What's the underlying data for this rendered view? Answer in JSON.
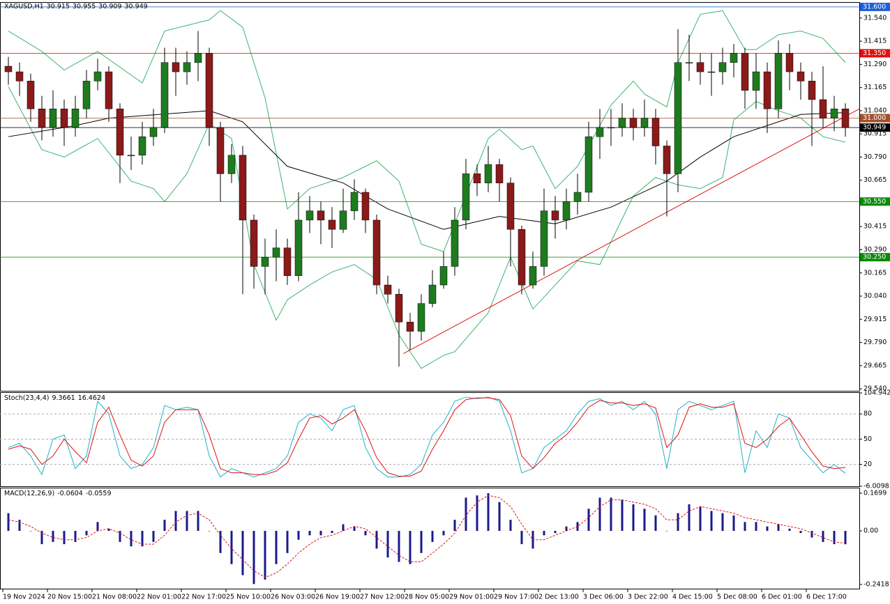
{
  "chart_data": [
    {
      "type": "candlestick",
      "title": "XAGUSD,H1",
      "header_values": [
        30.915,
        30.955,
        30.909,
        30.949
      ],
      "categories": [
        "19 Nov 2024",
        null,
        null,
        null,
        "20 Nov 15:00",
        null,
        null,
        null,
        "21 Nov 08:00",
        null,
        null,
        null,
        "22 Nov 01:00",
        null,
        null,
        null,
        "22 Nov 17:00",
        null,
        null,
        null,
        "25 Nov 10:00",
        null,
        null,
        null,
        "26 Nov 03:00",
        null,
        null,
        null,
        "26 Nov 19:00",
        null,
        null,
        null,
        "27 Nov 12:00",
        null,
        null,
        null,
        "28 Nov 05:00",
        null,
        null,
        null,
        "29 Nov 01:00",
        null,
        null,
        null,
        "29 Nov 17:00",
        null,
        null,
        null,
        "2 Dec 13:00",
        null,
        null,
        null,
        "3 Dec 06:00",
        null,
        null,
        null,
        "3 Dec 22:00",
        null,
        null,
        null,
        "4 Dec 15:00",
        null,
        null,
        null,
        "5 Dec 08:00",
        null,
        null,
        null,
        "6 Dec 01:00",
        null,
        null,
        null,
        "6 Dec 17:00",
        null,
        null,
        null
      ],
      "open": [
        31.28,
        31.25,
        31.2,
        31.05,
        30.95,
        31.05,
        30.95,
        31.05,
        31.2,
        31.25,
        31.05,
        30.8,
        30.8,
        30.9,
        30.95,
        31.3,
        31.25,
        31.3,
        31.35,
        30.95,
        30.7,
        30.8,
        30.45,
        30.2,
        30.25,
        30.3,
        30.15,
        30.45,
        30.5,
        30.45,
        30.4,
        30.5,
        30.6,
        30.45,
        30.1,
        30.05,
        29.9,
        29.85,
        30.0,
        30.1,
        30.2,
        30.45,
        30.7,
        30.65,
        30.75,
        30.65,
        30.4,
        30.1,
        30.2,
        30.5,
        30.45,
        30.55,
        30.6,
        30.9,
        30.95,
        30.95,
        31.0,
        30.95,
        31.0,
        30.85,
        30.7,
        31.3,
        31.3,
        31.25,
        31.25,
        31.3,
        31.35,
        31.15,
        31.25,
        31.05,
        31.35,
        31.25,
        31.2,
        31.1,
        31.0,
        31.05
      ],
      "high": [
        31.33,
        31.3,
        31.24,
        31.12,
        31.15,
        31.1,
        31.12,
        31.26,
        31.32,
        31.28,
        31.08,
        30.9,
        30.98,
        31.05,
        31.38,
        31.38,
        31.36,
        31.47,
        31.38,
        30.98,
        30.86,
        30.85,
        30.48,
        30.35,
        30.4,
        30.35,
        30.6,
        30.58,
        30.55,
        30.52,
        30.62,
        30.67,
        30.62,
        30.48,
        30.15,
        30.08,
        29.95,
        30.05,
        30.18,
        30.28,
        30.52,
        30.78,
        30.75,
        30.85,
        30.78,
        30.68,
        30.42,
        30.28,
        30.62,
        30.58,
        30.62,
        30.7,
        30.98,
        31.05,
        31.05,
        31.08,
        31.05,
        31.1,
        31.05,
        30.88,
        31.48,
        31.45,
        31.35,
        31.35,
        31.38,
        31.4,
        31.38,
        31.35,
        31.3,
        31.42,
        31.4,
        31.3,
        31.25,
        31.28,
        31.12,
        31.08
      ],
      "low": [
        31.18,
        31.12,
        30.98,
        30.88,
        30.9,
        30.85,
        30.9,
        31.0,
        31.15,
        30.98,
        30.65,
        30.72,
        30.75,
        30.85,
        30.92,
        31.12,
        31.18,
        31.2,
        30.85,
        30.55,
        30.65,
        30.05,
        30.08,
        30.05,
        30.12,
        30.1,
        30.12,
        30.38,
        30.32,
        30.3,
        30.38,
        30.45,
        30.38,
        30.05,
        30.0,
        29.66,
        29.75,
        29.8,
        29.98,
        30.08,
        30.15,
        30.4,
        30.58,
        30.6,
        30.55,
        30.2,
        30.05,
        30.08,
        30.15,
        30.35,
        30.4,
        30.48,
        30.55,
        30.78,
        30.85,
        30.9,
        30.88,
        30.9,
        30.75,
        30.47,
        30.6,
        31.2,
        31.18,
        31.12,
        31.18,
        31.22,
        31.05,
        31.05,
        30.92,
        31.0,
        31.15,
        31.1,
        30.85,
        30.95,
        30.93,
        30.9
      ],
      "close": [
        31.25,
        31.2,
        31.05,
        30.95,
        31.05,
        30.95,
        31.05,
        31.2,
        31.25,
        31.05,
        30.8,
        30.8,
        30.9,
        30.95,
        31.3,
        31.25,
        31.3,
        31.35,
        30.95,
        30.7,
        30.8,
        30.45,
        30.2,
        30.25,
        30.3,
        30.15,
        30.45,
        30.5,
        30.45,
        30.4,
        30.5,
        30.6,
        30.45,
        30.1,
        30.05,
        29.9,
        29.85,
        30.0,
        30.1,
        30.2,
        30.45,
        30.7,
        30.65,
        30.75,
        30.65,
        30.4,
        30.1,
        30.2,
        30.5,
        30.45,
        30.55,
        30.6,
        30.9,
        30.95,
        30.95,
        31.0,
        30.95,
        31.0,
        30.85,
        30.7,
        31.3,
        31.3,
        31.25,
        31.25,
        31.3,
        31.35,
        31.15,
        31.25,
        31.05,
        31.35,
        31.25,
        31.2,
        31.1,
        31.0,
        31.05,
        30.949
      ],
      "up_color": "#1e7b1e",
      "down_color": "#8b1a1a",
      "ylim": [
        29.529,
        31.626
      ],
      "yticks": [
        {
          "value": 29.54,
          "label": "29.540"
        },
        {
          "value": 29.665,
          "label": "29.665"
        },
        {
          "value": 29.79,
          "label": "29.790"
        },
        {
          "value": 29.915,
          "label": "29.915"
        },
        {
          "value": 30.04,
          "label": "30.040"
        },
        {
          "value": 30.165,
          "label": "30.165"
        },
        {
          "value": 30.29,
          "label": "30.290"
        },
        {
          "value": 30.415,
          "label": "30.415"
        },
        {
          "value": 30.54,
          "label": "30.540"
        },
        {
          "value": 30.665,
          "label": "30.665"
        },
        {
          "value": 30.79,
          "label": "30.790"
        },
        {
          "value": 30.915,
          "label": "30.915"
        },
        {
          "value": 31.04,
          "label": "31.040"
        },
        {
          "value": 31.165,
          "label": "31.165"
        },
        {
          "value": 31.29,
          "label": "31.290"
        },
        {
          "value": 31.415,
          "label": "31.415"
        },
        {
          "value": 31.54,
          "label": "31.540"
        }
      ],
      "lines": [
        {
          "color": "#3cb371",
          "x": [
            0,
            3,
            5,
            8,
            12,
            14,
            18,
            19,
            21,
            23,
            25,
            27,
            30,
            33,
            35,
            37,
            39,
            43,
            44,
            46,
            47,
            49,
            51,
            54,
            56,
            57,
            59,
            60,
            62,
            64,
            66,
            67,
            69,
            71,
            73,
            75
          ],
          "values": [
            31.47,
            31.36,
            31.26,
            31.36,
            31.19,
            31.47,
            31.53,
            31.58,
            31.49,
            31.11,
            30.51,
            30.62,
            30.68,
            30.77,
            30.66,
            30.32,
            30.28,
            30.89,
            30.94,
            30.83,
            30.85,
            30.62,
            30.74,
            31.07,
            31.2,
            31.13,
            31.06,
            31.3,
            31.56,
            31.58,
            31.37,
            31.37,
            31.45,
            31.47,
            31.43,
            31.3
          ]
        },
        {
          "color": "#3cb371",
          "x": [
            0,
            3,
            5,
            8,
            11,
            13,
            14,
            16,
            18,
            20,
            22,
            24,
            25,
            27,
            29,
            31,
            33,
            35,
            37,
            39,
            40,
            43,
            45,
            47,
            49,
            51,
            53,
            56,
            58,
            60,
            62,
            64,
            65,
            67,
            69,
            71,
            73,
            75
          ],
          "values": [
            31.17,
            30.83,
            30.79,
            30.89,
            30.66,
            30.62,
            30.55,
            30.7,
            30.97,
            30.89,
            30.21,
            29.91,
            30.02,
            30.1,
            30.17,
            30.21,
            30.13,
            29.83,
            29.65,
            29.72,
            29.74,
            29.95,
            30.25,
            29.97,
            30.1,
            30.23,
            30.21,
            30.58,
            30.68,
            30.64,
            30.62,
            30.68,
            30.99,
            31.09,
            31.04,
            31.0,
            30.9,
            30.87
          ]
        },
        {
          "color": "#000000",
          "x": [
            0,
            6,
            9,
            18,
            21,
            25,
            30,
            34,
            39,
            44,
            49,
            54,
            59,
            62,
            65,
            71,
            75
          ],
          "values": [
            30.9,
            30.96,
            31.0,
            31.04,
            30.98,
            30.74,
            30.65,
            30.51,
            30.4,
            30.47,
            30.43,
            30.52,
            30.66,
            30.79,
            30.9,
            31.02,
            31.03
          ]
        },
        {
          "color": "#e01010",
          "x": [
            35.4,
            76.25
          ],
          "values": [
            29.73,
            31.05
          ]
        }
      ],
      "levels": [
        {
          "value": 31.6,
          "label": "31.600",
          "color": "#1f5fd6"
        },
        {
          "value": 31.35,
          "label": "31.350",
          "color": "#e01010"
        },
        {
          "value": 31,
          "label": "31.000",
          "color": "#a0522d"
        },
        {
          "value": 30.55,
          "label": "30.550",
          "color": "#0a8a0a"
        },
        {
          "value": 30.25,
          "label": "30.250",
          "color": "#0a8a0a"
        },
        {
          "value": 30.949,
          "label": "30.949",
          "color": "#000000"
        }
      ]
    },
    {
      "type": "line",
      "title": "Stoch(23,4,4)",
      "header_values": [
        9.3661,
        16.4624
      ],
      "ylim": [
        -6.0098,
        104.9428
      ],
      "yticks": [
        -6.0098,
        20,
        50,
        80,
        104.9428
      ],
      "grid": true,
      "series": [
        {
          "color": "#20b2c8",
          "values": [
            40,
            45,
            30,
            8,
            50,
            55,
            15,
            30,
            95,
            80,
            30,
            15,
            20,
            40,
            90,
            85,
            88,
            85,
            30,
            5,
            15,
            10,
            5,
            10,
            15,
            30,
            70,
            80,
            75,
            60,
            85,
            90,
            40,
            15,
            5,
            5,
            8,
            20,
            55,
            70,
            95,
            100,
            98,
            100,
            95,
            60,
            10,
            15,
            40,
            50,
            60,
            80,
            95,
            98,
            90,
            95,
            85,
            95,
            80,
            15,
            85,
            95,
            90,
            85,
            90,
            95,
            10,
            60,
            40,
            80,
            75,
            40,
            25,
            10,
            20,
            9.3661
          ]
        },
        {
          "color": "#e01010",
          "values": [
            38,
            42,
            38,
            20,
            30,
            50,
            35,
            22,
            70,
            88,
            55,
            25,
            18,
            30,
            70,
            85,
            85,
            85,
            55,
            15,
            10,
            10,
            8,
            8,
            12,
            22,
            50,
            75,
            78,
            68,
            75,
            85,
            60,
            28,
            10,
            6,
            6,
            12,
            38,
            60,
            85,
            97,
            99,
            99,
            97,
            78,
            30,
            15,
            28,
            45,
            55,
            70,
            88,
            96,
            93,
            93,
            90,
            92,
            87,
            40,
            55,
            88,
            92,
            88,
            88,
            92,
            45,
            40,
            50,
            65,
            75,
            55,
            35,
            18,
            15,
            16.4624
          ]
        }
      ]
    },
    {
      "type": "macd",
      "title": "MACD(12,26,9)",
      "header_values": [
        -0.0604,
        -0.0559
      ],
      "ylim": [
        -0.261,
        0.192
      ],
      "yticks": [
        -0.2418,
        {
          "value": 0,
          "label": "0.00"
        },
        0.1699
      ],
      "histogram": {
        "color": "#1a1a8c",
        "values": [
          0.08,
          0.05,
          0.0,
          -0.06,
          -0.05,
          -0.06,
          -0.05,
          -0.02,
          0.04,
          0.01,
          -0.05,
          -0.07,
          -0.07,
          -0.05,
          0.05,
          0.09,
          0.09,
          0.09,
          0.0,
          -0.1,
          -0.15,
          -0.2,
          -0.24,
          -0.22,
          -0.15,
          -0.1,
          -0.04,
          -0.02,
          -0.02,
          -0.01,
          0.03,
          0.02,
          -0.02,
          -0.08,
          -0.12,
          -0.14,
          -0.15,
          -0.1,
          -0.05,
          -0.02,
          0.05,
          0.15,
          0.16,
          0.17,
          0.13,
          0.05,
          -0.06,
          -0.08,
          -0.02,
          -0.01,
          0.02,
          0.04,
          0.1,
          0.15,
          0.15,
          0.14,
          0.12,
          0.1,
          0.07,
          0.0,
          0.08,
          0.12,
          0.11,
          0.09,
          0.08,
          0.07,
          0.04,
          0.04,
          0.02,
          0.03,
          0.01,
          -0.01,
          -0.03,
          -0.05,
          -0.06,
          -0.0604
        ]
      },
      "signal": {
        "color": "#e01010",
        "values": [
          0.05,
          0.04,
          0.02,
          -0.01,
          -0.03,
          -0.04,
          -0.04,
          -0.03,
          0.0,
          0.01,
          -0.01,
          -0.04,
          -0.06,
          -0.06,
          -0.02,
          0.04,
          0.07,
          0.08,
          0.05,
          -0.02,
          -0.08,
          -0.13,
          -0.18,
          -0.21,
          -0.19,
          -0.15,
          -0.1,
          -0.06,
          -0.03,
          -0.02,
          0.0,
          0.02,
          0.01,
          -0.03,
          -0.07,
          -0.11,
          -0.14,
          -0.14,
          -0.1,
          -0.06,
          -0.01,
          0.07,
          0.13,
          0.16,
          0.15,
          0.11,
          0.03,
          -0.04,
          -0.04,
          -0.02,
          0.0,
          0.02,
          0.06,
          0.11,
          0.14,
          0.14,
          0.13,
          0.12,
          0.1,
          0.05,
          0.05,
          0.09,
          0.11,
          0.1,
          0.09,
          0.08,
          0.06,
          0.05,
          0.04,
          0.03,
          0.02,
          0.01,
          -0.01,
          -0.03,
          -0.05,
          -0.0559
        ]
      }
    }
  ]
}
